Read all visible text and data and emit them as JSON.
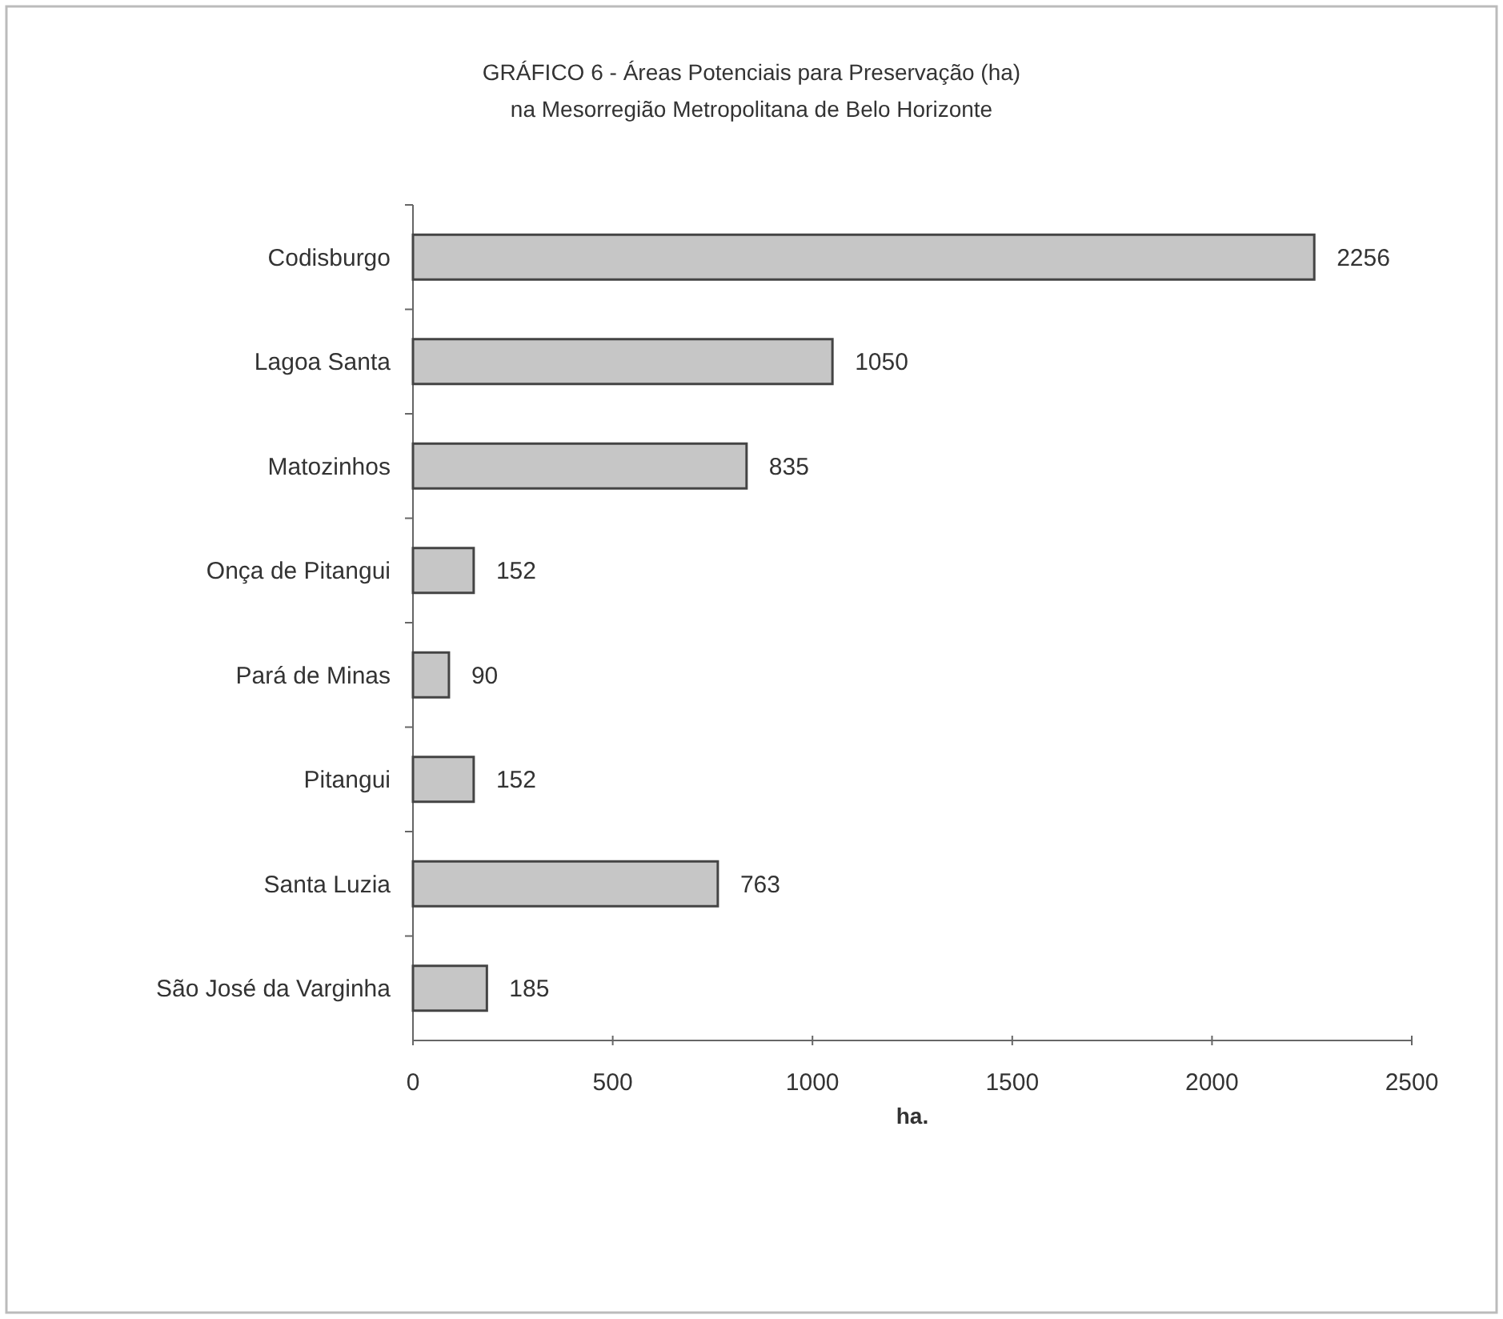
{
  "chart_data": {
    "type": "bar",
    "orientation": "horizontal",
    "title": "GRÁFICO 6 - Áreas Potenciais para Preservação (ha)",
    "subtitle": "na Mesorregião Metropolitana de Belo Horizonte",
    "xlabel": "ha.",
    "categories": [
      "Codisburgo",
      "Lagoa Santa",
      "Matozinhos",
      "Onça de Pitangui",
      "Pará de Minas",
      "Pitangui",
      "Santa Luzia",
      "São José da Varginha"
    ],
    "values": [
      2256,
      1050,
      835,
      152,
      90,
      152,
      763,
      185
    ],
    "color": "#c6c6c6",
    "xlim": [
      0,
      2500
    ],
    "xticks": [
      0,
      500,
      1000,
      1500,
      2000,
      2500
    ],
    "data_labels": true
  }
}
